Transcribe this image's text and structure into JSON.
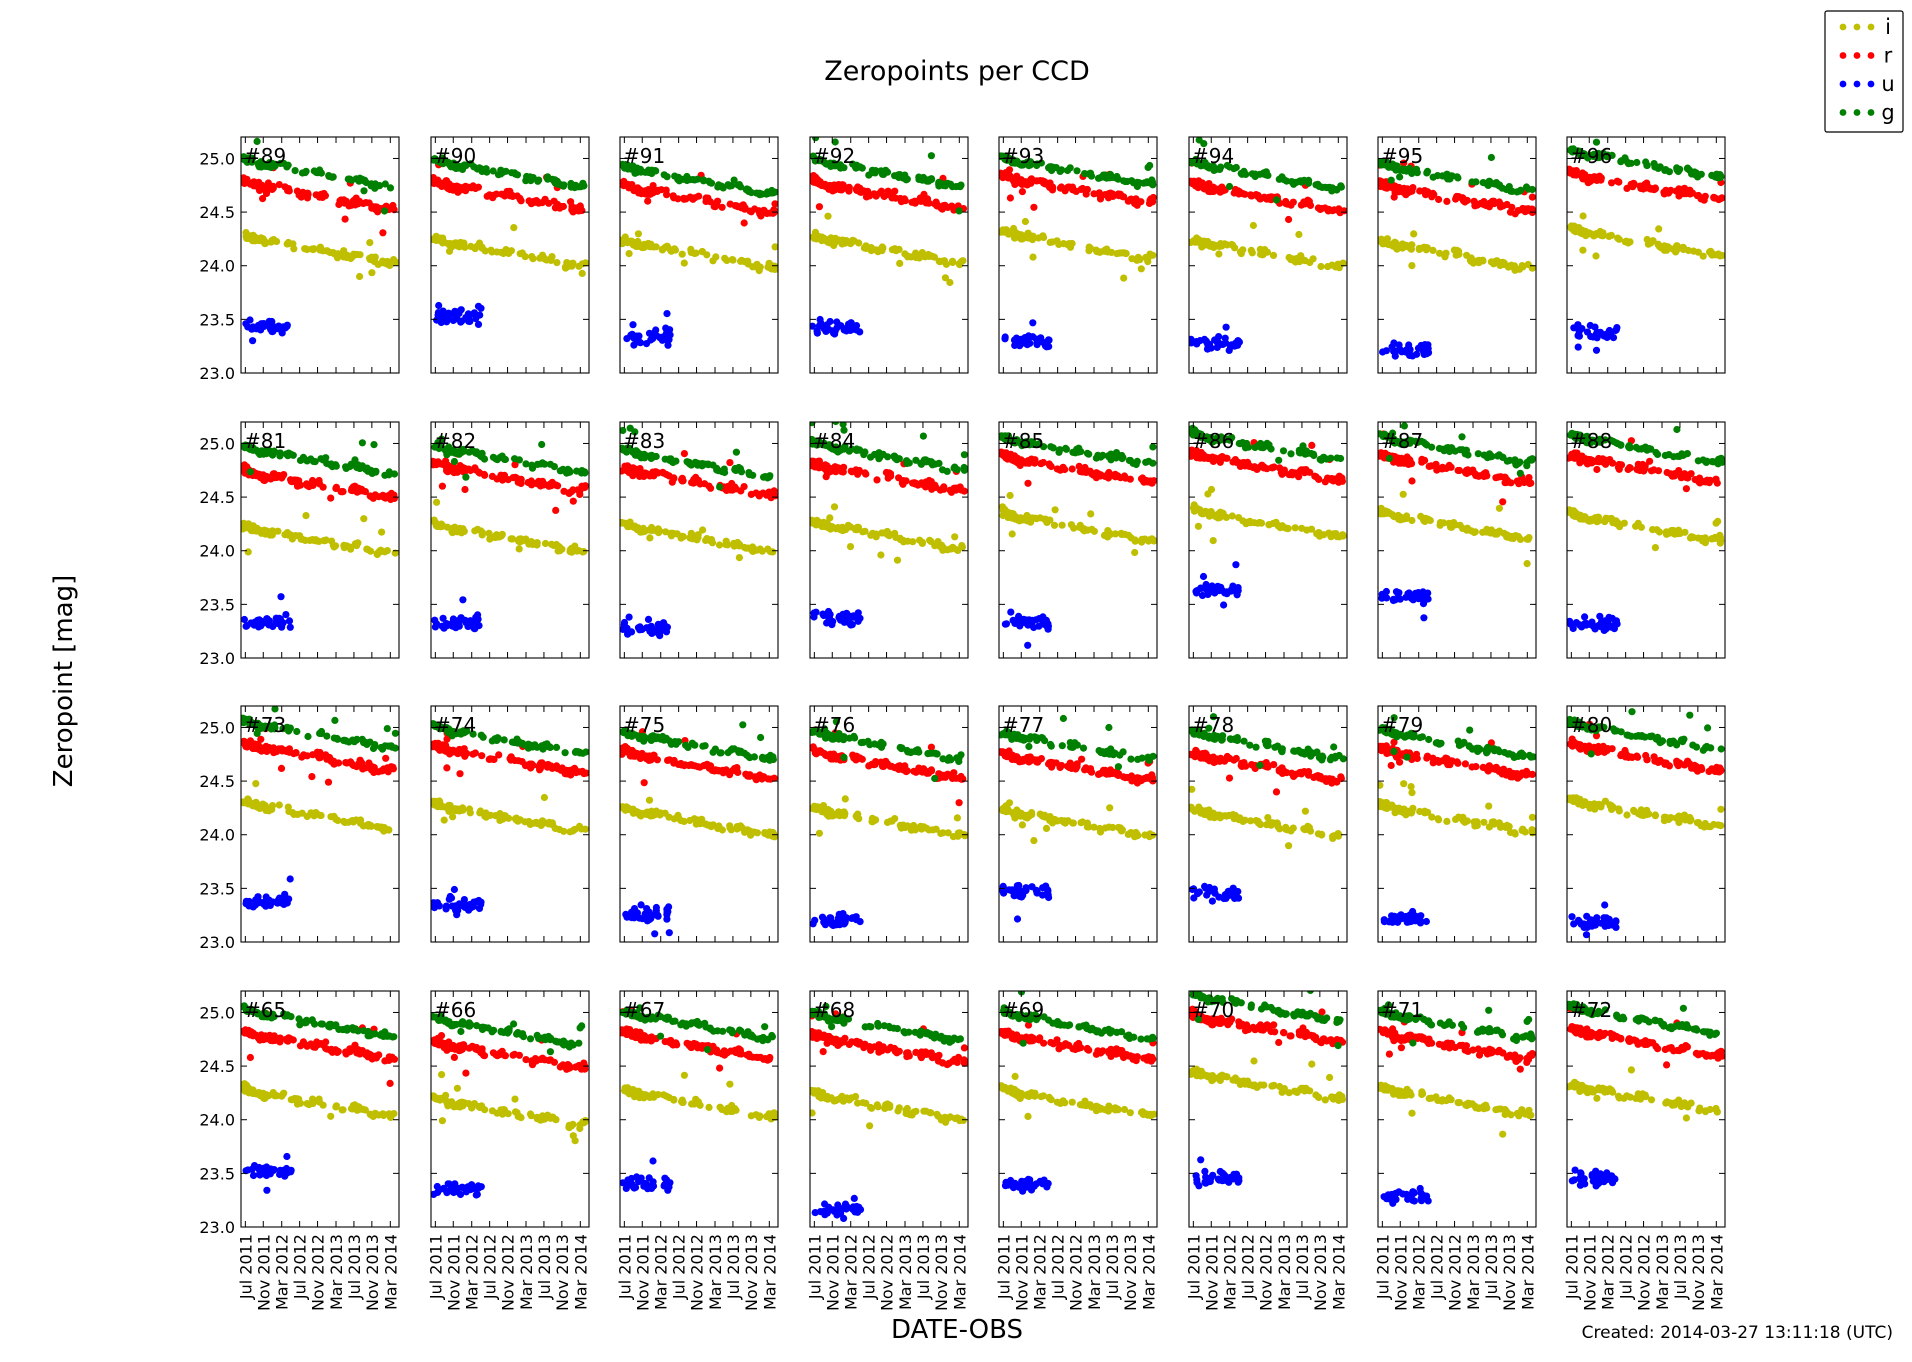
{
  "chart_data": {
    "type": "scatter",
    "title": "Zeropoints per CCD",
    "xlabel": "DATE-OBS",
    "ylabel": "Zeropoint [mag]",
    "footer": "Created: 2014-03-27 13:11:18 (UTC)",
    "ylim": [
      23.0,
      25.2
    ],
    "yticks": [
      "23.0",
      "23.5",
      "24.0",
      "24.5",
      "25.0"
    ],
    "xlim": [
      2011.42,
      2014.33
    ],
    "xticks": [
      {
        "label": "Jul 2011",
        "t": 2011.5
      },
      {
        "label": "Nov 2011",
        "t": 2011.83
      },
      {
        "label": "Mar 2012",
        "t": 2012.17
      },
      {
        "label": "Jul 2012",
        "t": 2012.5
      },
      {
        "label": "Nov 2012",
        "t": 2012.83
      },
      {
        "label": "Mar 2013",
        "t": 2013.17
      },
      {
        "label": "Jul 2013",
        "t": 2013.5
      },
      {
        "label": "Nov 2013",
        "t": 2013.83
      },
      {
        "label": "Mar 2014",
        "t": 2014.17
      }
    ],
    "legend": [
      {
        "name": "i",
        "color": "#bfbf00"
      },
      {
        "name": "r",
        "color": "#ff0000"
      },
      {
        "name": "u",
        "color": "#0000ff"
      },
      {
        "name": "g",
        "color": "#008000"
      }
    ],
    "legend_position": "top-right",
    "u_end": 2012.35,
    "panels": [
      {
        "label": "#89",
        "i": 24.17,
        "r": 24.67,
        "u": 23.42,
        "g": 24.88
      },
      {
        "label": "#90",
        "i": 24.14,
        "r": 24.67,
        "u": 23.53,
        "g": 24.88
      },
      {
        "label": "#91",
        "i": 24.13,
        "r": 24.64,
        "u": 23.33,
        "g": 24.82
      },
      {
        "label": "#92",
        "i": 24.17,
        "r": 24.68,
        "u": 23.43,
        "g": 24.88
      },
      {
        "label": "#93",
        "i": 24.21,
        "r": 24.73,
        "u": 23.3,
        "g": 24.9
      },
      {
        "label": "#94",
        "i": 24.13,
        "r": 24.66,
        "u": 23.28,
        "g": 24.86
      },
      {
        "label": "#95",
        "i": 24.12,
        "r": 24.65,
        "u": 23.22,
        "g": 24.84
      },
      {
        "label": "#96",
        "i": 24.24,
        "r": 24.76,
        "u": 23.38,
        "g": 24.97
      },
      {
        "label": "#81",
        "i": 24.12,
        "r": 24.64,
        "u": 23.32,
        "g": 24.86
      },
      {
        "label": "#82",
        "i": 24.14,
        "r": 24.7,
        "u": 23.33,
        "g": 24.87
      },
      {
        "label": "#83",
        "i": 24.14,
        "r": 24.66,
        "u": 23.27,
        "g": 24.83
      },
      {
        "label": "#84",
        "i": 24.16,
        "r": 24.7,
        "u": 23.37,
        "g": 24.9
      },
      {
        "label": "#85",
        "i": 24.24,
        "r": 24.78,
        "u": 23.33,
        "g": 24.95
      },
      {
        "label": "#86",
        "i": 24.28,
        "r": 24.8,
        "u": 23.63,
        "g": 24.99
      },
      {
        "label": "#87",
        "i": 24.25,
        "r": 24.78,
        "u": 23.58,
        "g": 24.96
      },
      {
        "label": "#88",
        "i": 24.24,
        "r": 24.78,
        "u": 23.32,
        "g": 24.97
      },
      {
        "label": "#73",
        "i": 24.2,
        "r": 24.74,
        "u": 23.37,
        "g": 24.95
      },
      {
        "label": "#74",
        "i": 24.18,
        "r": 24.72,
        "u": 23.35,
        "g": 24.9
      },
      {
        "label": "#75",
        "i": 24.14,
        "r": 24.67,
        "u": 23.27,
        "g": 24.85
      },
      {
        "label": "#76",
        "i": 24.14,
        "r": 24.67,
        "u": 23.2,
        "g": 24.85
      },
      {
        "label": "#77",
        "i": 24.13,
        "r": 24.65,
        "u": 23.47,
        "g": 24.84
      },
      {
        "label": "#78",
        "i": 24.13,
        "r": 24.65,
        "u": 23.45,
        "g": 24.85
      },
      {
        "label": "#79",
        "i": 24.17,
        "r": 24.69,
        "u": 23.22,
        "g": 24.87
      },
      {
        "label": "#80",
        "i": 24.22,
        "r": 24.74,
        "u": 23.18,
        "g": 24.94
      },
      {
        "label": "#65",
        "i": 24.18,
        "r": 24.71,
        "u": 23.52,
        "g": 24.92
      },
      {
        "label": "#66",
        "i": 24.09,
        "r": 24.62,
        "u": 23.36,
        "g": 24.84
      },
      {
        "label": "#67",
        "i": 24.17,
        "r": 24.71,
        "u": 23.4,
        "g": 24.9
      },
      {
        "label": "#68",
        "i": 24.14,
        "r": 24.68,
        "u": 23.17,
        "g": 24.88
      },
      {
        "label": "#69",
        "i": 24.18,
        "r": 24.7,
        "u": 23.4,
        "g": 24.9
      },
      {
        "label": "#70",
        "i": 24.34,
        "r": 24.87,
        "u": 23.45,
        "g": 25.06
      },
      {
        "label": "#71",
        "i": 24.19,
        "r": 24.71,
        "u": 23.28,
        "g": 24.9
      },
      {
        "label": "#72",
        "i": 24.22,
        "r": 24.74,
        "u": 23.45,
        "g": 24.95
      }
    ]
  }
}
